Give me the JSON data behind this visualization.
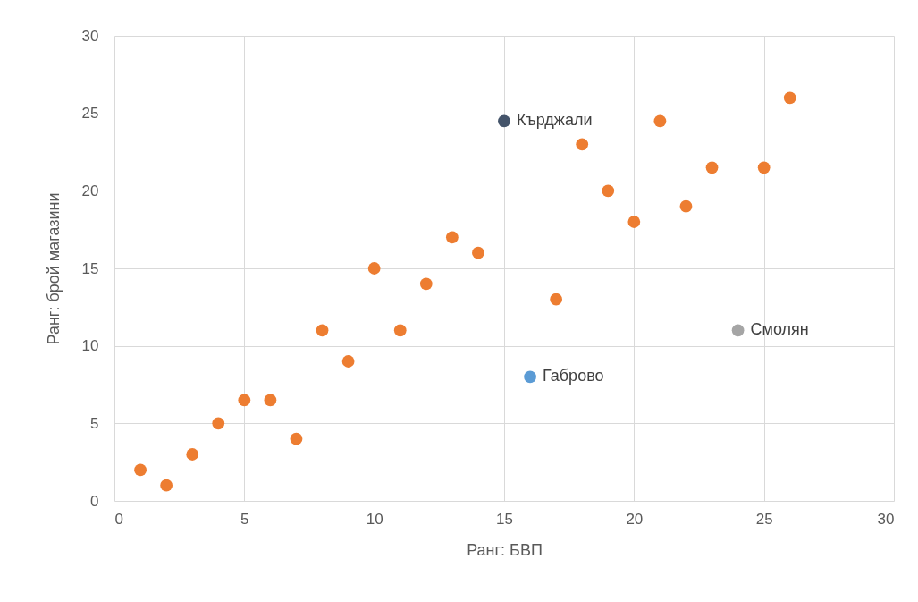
{
  "chart_data": {
    "type": "scatter",
    "xlabel": "Ранг: БВП",
    "ylabel": "Ранг: брой магазини",
    "xlim": [
      0,
      30
    ],
    "ylim": [
      0,
      30
    ],
    "xticks": [
      0,
      5,
      10,
      15,
      20,
      25,
      30
    ],
    "yticks": [
      0,
      5,
      10,
      15,
      20,
      25,
      30
    ],
    "grid": true,
    "legend": false,
    "marker": "circle",
    "series": [
      {
        "color": "#ed7d31",
        "x": [
          1,
          2,
          3,
          4,
          5,
          6,
          7,
          8,
          9,
          10,
          11,
          12,
          13,
          14,
          17,
          18,
          19,
          20,
          21,
          22,
          23,
          25,
          26
        ],
        "values": [
          2,
          1,
          3,
          5,
          6.5,
          6.5,
          4,
          11,
          9,
          15,
          11,
          14,
          17,
          16,
          13,
          23,
          20,
          18,
          24.5,
          19,
          21.5,
          21.5,
          26
        ]
      },
      {
        "name": "Кърджали",
        "color": "#44546a",
        "x": [
          15
        ],
        "values": [
          24.5
        ]
      },
      {
        "name": "Габрово",
        "color": "#5b9bd5",
        "x": [
          16
        ],
        "values": [
          8
        ]
      },
      {
        "name": "Смолян",
        "color": "#a5a5a5",
        "x": [
          24
        ],
        "values": [
          11
        ]
      }
    ]
  }
}
